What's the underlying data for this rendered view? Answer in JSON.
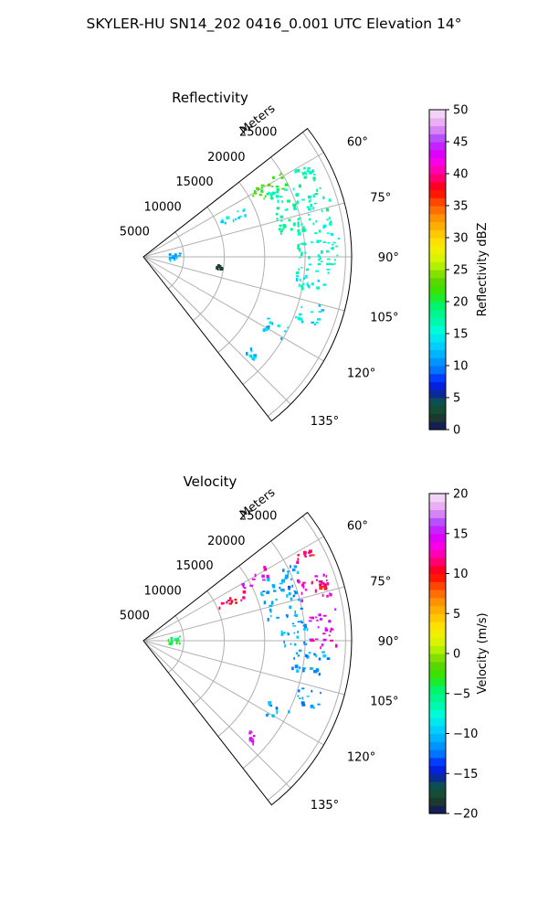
{
  "figure_title": "SKYLER-HU  SN14_202  0416_0.001 UTC Elevation 14°",
  "chart_data": [
    {
      "type": "heatmap",
      "projection": "polar-sector",
      "title": "Reflectivity",
      "range_axis_label": "Meters",
      "range_ticks": [
        5000,
        10000,
        15000,
        20000,
        25000
      ],
      "range_tick_labels": [
        "5000",
        "10000",
        "15000",
        "20000",
        "25000"
      ],
      "azimuth_range_deg": [
        52,
        142
      ],
      "azimuth_ticks_deg": [
        60,
        75,
        90,
        105,
        120,
        135
      ],
      "azimuth_tick_labels": [
        "60°",
        "75°",
        "90°",
        "105°",
        "120°",
        "135°"
      ],
      "grid": true,
      "colorbar": {
        "label": "Reflectivity dBZ",
        "min": 0,
        "max": 50,
        "ticks": [
          0,
          5,
          10,
          15,
          20,
          25,
          30,
          35,
          40,
          45,
          50
        ],
        "tick_labels": [
          "0",
          "5",
          "10",
          "15",
          "20",
          "25",
          "30",
          "35",
          "40",
          "45",
          "50"
        ]
      },
      "echo_regions": [
        {
          "az": [
            58,
            64
          ],
          "r": [
            15000,
            20000
          ],
          "value": 22
        },
        {
          "az": [
            60,
            63
          ],
          "r": [
            21000,
            23500
          ],
          "value": 17
        },
        {
          "az": [
            62,
            80
          ],
          "r": [
            17000,
            24000
          ],
          "value": 17
        },
        {
          "az": [
            80,
            93
          ],
          "r": [
            19000,
            24500
          ],
          "value": 16
        },
        {
          "az": [
            93,
            101
          ],
          "r": [
            18500,
            23000
          ],
          "value": 15
        },
        {
          "az": [
            105,
            112
          ],
          "r": [
            20000,
            23000
          ],
          "value": 14
        },
        {
          "az": [
            115,
            121
          ],
          "r": [
            17000,
            20000
          ],
          "value": 13
        },
        {
          "az": [
            130,
            133
          ],
          "r": [
            17000,
            18500
          ],
          "value": 13
        },
        {
          "az": [
            63,
            68
          ],
          "r": [
            10000,
            14000
          ],
          "value": 14
        },
        {
          "az": [
            82,
            96
          ],
          "r": [
            3000,
            4500
          ],
          "value": 12
        },
        {
          "az": [
            95,
            98
          ],
          "r": [
            9000,
            9600
          ],
          "value": 2
        }
      ]
    },
    {
      "type": "heatmap",
      "projection": "polar-sector",
      "title": "Velocity",
      "range_axis_label": "Meters",
      "range_ticks": [
        5000,
        10000,
        15000,
        20000,
        25000
      ],
      "range_tick_labels": [
        "5000",
        "10000",
        "15000",
        "20000",
        "25000"
      ],
      "azimuth_range_deg": [
        52,
        142
      ],
      "azimuth_ticks_deg": [
        60,
        75,
        90,
        105,
        120,
        135
      ],
      "azimuth_tick_labels": [
        "60°",
        "75°",
        "90°",
        "105°",
        "120°",
        "135°"
      ],
      "grid": true,
      "colorbar": {
        "label": "Velocity (m/s)",
        "min": -20,
        "max": 20,
        "ticks": [
          -20,
          -15,
          -10,
          -5,
          0,
          5,
          10,
          15,
          20
        ],
        "tick_labels": [
          "−20",
          "−15",
          "−10",
          "−5",
          "0",
          "5",
          "10",
          "15",
          "20"
        ]
      },
      "echo_regions": [
        {
          "az": [
            58,
            63
          ],
          "r": [
            14000,
            17500
          ],
          "value": 14
        },
        {
          "az": [
            62,
            66
          ],
          "r": [
            17000,
            21000
          ],
          "value": -11
        },
        {
          "az": [
            60,
            63
          ],
          "r": [
            21000,
            23500
          ],
          "value": 11
        },
        {
          "az": [
            66,
            80
          ],
          "r": [
            15500,
            20000
          ],
          "value": -11
        },
        {
          "az": [
            68,
            76
          ],
          "r": [
            20000,
            24000
          ],
          "value": 14
        },
        {
          "az": [
            70,
            74
          ],
          "r": [
            22000,
            24000
          ],
          "value": 11
        },
        {
          "az": [
            80,
            92
          ],
          "r": [
            17000,
            20500
          ],
          "value": -11
        },
        {
          "az": [
            80,
            92
          ],
          "r": [
            20500,
            24000
          ],
          "value": 14
        },
        {
          "az": [
            93,
            101
          ],
          "r": [
            18500,
            23000
          ],
          "value": -11
        },
        {
          "az": [
            105,
            112
          ],
          "r": [
            20000,
            23000
          ],
          "value": -11
        },
        {
          "az": [
            115,
            121
          ],
          "r": [
            17000,
            20000
          ],
          "value": -11
        },
        {
          "az": [
            130,
            133
          ],
          "r": [
            17000,
            18500
          ],
          "value": 14
        },
        {
          "az": [
            63,
            68
          ],
          "r": [
            10000,
            14000
          ],
          "value": 11
        },
        {
          "az": [
            82,
            96
          ],
          "r": [
            3000,
            4500
          ],
          "value": -4
        }
      ]
    }
  ]
}
